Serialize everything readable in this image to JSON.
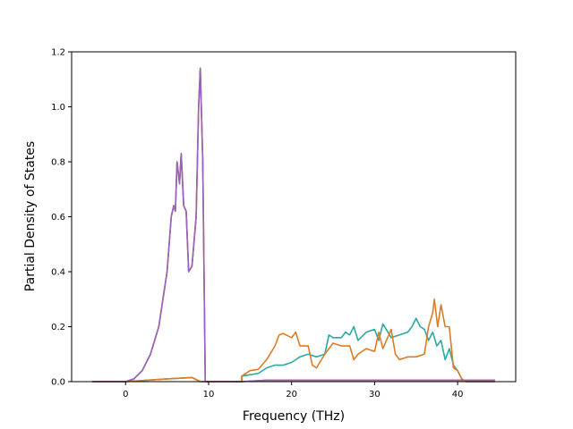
{
  "chart_data": {
    "type": "line",
    "title": "",
    "xlabel": "Frequency (THz)",
    "ylabel": "Partial Density of States",
    "xlim": [
      -6.5,
      47
    ],
    "ylim": [
      0,
      1.2
    ],
    "xticks": [
      0,
      10,
      20,
      30,
      40
    ],
    "yticks": [
      0.0,
      0.2,
      0.4,
      0.6,
      0.8,
      1.0,
      1.2
    ],
    "ytick_labels": [
      "0.0",
      "0.2",
      "0.4",
      "0.6",
      "0.8",
      "1.0",
      "1.2"
    ],
    "grid": false,
    "legend": false,
    "series": [
      {
        "color": "#2ca9a0",
        "points": [
          [
            -4,
            0
          ],
          [
            0,
            0
          ],
          [
            5,
            0.01
          ],
          [
            8,
            0.015
          ],
          [
            9,
            0
          ],
          [
            14,
            0
          ],
          [
            14,
            0.02
          ],
          [
            16,
            0.03
          ],
          [
            17,
            0.05
          ],
          [
            18,
            0.06
          ],
          [
            19,
            0.06
          ],
          [
            20,
            0.07
          ],
          [
            21,
            0.09
          ],
          [
            22,
            0.1
          ],
          [
            23,
            0.09
          ],
          [
            24,
            0.1
          ],
          [
            24.5,
            0.17
          ],
          [
            25,
            0.16
          ],
          [
            26,
            0.16
          ],
          [
            26.5,
            0.18
          ],
          [
            27,
            0.17
          ],
          [
            27.5,
            0.2
          ],
          [
            28,
            0.15
          ],
          [
            29,
            0.18
          ],
          [
            30,
            0.19
          ],
          [
            30.5,
            0.15
          ],
          [
            31,
            0.21
          ],
          [
            32,
            0.16
          ],
          [
            33,
            0.17
          ],
          [
            34,
            0.18
          ],
          [
            34.5,
            0.2
          ],
          [
            35,
            0.23
          ],
          [
            35.5,
            0.2
          ],
          [
            36,
            0.19
          ],
          [
            36.5,
            0.15
          ],
          [
            37,
            0.18
          ],
          [
            37.5,
            0.13
          ],
          [
            38,
            0.15
          ],
          [
            38.5,
            0.08
          ],
          [
            39,
            0.12
          ],
          [
            39.5,
            0.06
          ],
          [
            40,
            0.04
          ],
          [
            40.5,
            0.01
          ],
          [
            41,
            0
          ],
          [
            44.5,
            0
          ]
        ]
      },
      {
        "color": "#e07b22",
        "points": [
          [
            -4,
            0
          ],
          [
            0,
            0
          ],
          [
            5,
            0.01
          ],
          [
            8,
            0.015
          ],
          [
            9,
            0
          ],
          [
            14,
            0
          ],
          [
            14,
            0.02
          ],
          [
            15,
            0.04
          ],
          [
            16,
            0.045
          ],
          [
            17,
            0.08
          ],
          [
            18,
            0.13
          ],
          [
            18.5,
            0.17
          ],
          [
            19,
            0.175
          ],
          [
            20,
            0.16
          ],
          [
            20.5,
            0.18
          ],
          [
            21,
            0.13
          ],
          [
            22,
            0.13
          ],
          [
            22.5,
            0.06
          ],
          [
            23,
            0.05
          ],
          [
            24,
            0.1
          ],
          [
            25,
            0.14
          ],
          [
            26,
            0.13
          ],
          [
            27,
            0.13
          ],
          [
            27.5,
            0.08
          ],
          [
            28,
            0.1
          ],
          [
            29,
            0.12
          ],
          [
            30,
            0.11
          ],
          [
            30.5,
            0.18
          ],
          [
            31,
            0.12
          ],
          [
            32,
            0.19
          ],
          [
            32.5,
            0.1
          ],
          [
            33,
            0.08
          ],
          [
            34,
            0.09
          ],
          [
            35,
            0.09
          ],
          [
            36,
            0.1
          ],
          [
            36.5,
            0.2
          ],
          [
            37,
            0.25
          ],
          [
            37.2,
            0.3
          ],
          [
            37.6,
            0.2
          ],
          [
            38,
            0.28
          ],
          [
            38.5,
            0.2
          ],
          [
            39,
            0.2
          ],
          [
            39.5,
            0.05
          ],
          [
            40,
            0.04
          ],
          [
            40.5,
            0.01
          ],
          [
            41,
            0
          ],
          [
            44.5,
            0
          ]
        ]
      },
      {
        "color": "#d62728",
        "points": [
          [
            -4,
            0
          ],
          [
            0,
            0
          ],
          [
            1,
            0.01
          ],
          [
            2,
            0.04
          ],
          [
            3,
            0.1
          ],
          [
            4,
            0.2
          ],
          [
            5,
            0.4
          ],
          [
            5.5,
            0.6
          ],
          [
            5.8,
            0.64
          ],
          [
            6,
            0.62
          ],
          [
            6.2,
            0.8
          ],
          [
            6.5,
            0.72
          ],
          [
            6.7,
            0.83
          ],
          [
            7,
            0.64
          ],
          [
            7.3,
            0.62
          ],
          [
            7.6,
            0.4
          ],
          [
            8,
            0.42
          ],
          [
            8.5,
            0.6
          ],
          [
            8.8,
            1.0
          ],
          [
            9,
            1.14
          ],
          [
            9.3,
            0.8
          ],
          [
            9.6,
            0
          ],
          [
            14,
            0
          ],
          [
            17,
            0.005
          ],
          [
            44.5,
            0.005
          ]
        ]
      },
      {
        "color": "#9467bd",
        "points": [
          [
            -4,
            0
          ],
          [
            0,
            0
          ],
          [
            1,
            0.01
          ],
          [
            2,
            0.04
          ],
          [
            3,
            0.1
          ],
          [
            4,
            0.2
          ],
          [
            5,
            0.4
          ],
          [
            5.5,
            0.6
          ],
          [
            5.8,
            0.64
          ],
          [
            6,
            0.62
          ],
          [
            6.2,
            0.8
          ],
          [
            6.5,
            0.72
          ],
          [
            6.7,
            0.83
          ],
          [
            7,
            0.64
          ],
          [
            7.3,
            0.62
          ],
          [
            7.6,
            0.4
          ],
          [
            8,
            0.42
          ],
          [
            8.5,
            0.6
          ],
          [
            8.8,
            1.0
          ],
          [
            9,
            1.14
          ],
          [
            9.3,
            0.8
          ],
          [
            9.6,
            0
          ],
          [
            14,
            0
          ],
          [
            17,
            0.005
          ],
          [
            44.5,
            0.005
          ]
        ]
      }
    ]
  }
}
